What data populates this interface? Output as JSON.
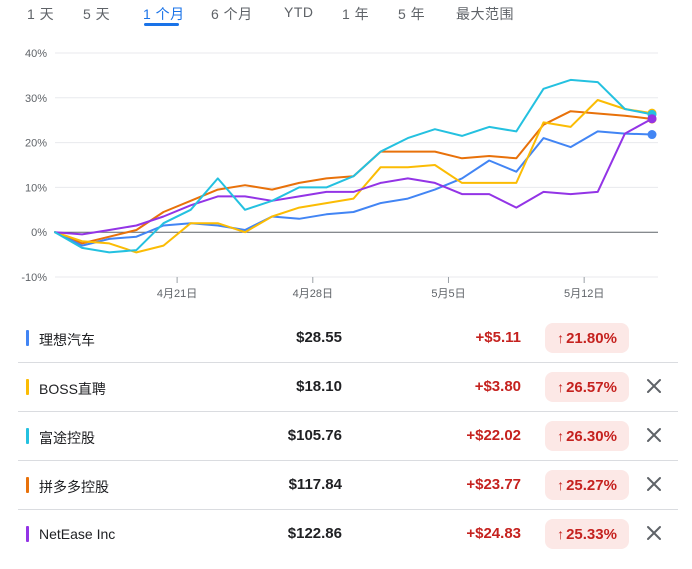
{
  "range_tabs": [
    {
      "label": "1 天",
      "active": false
    },
    {
      "label": "5 天",
      "active": false
    },
    {
      "label": "1 个月",
      "active": true
    },
    {
      "label": "6 个月",
      "active": false
    },
    {
      "label": "YTD",
      "active": false
    },
    {
      "label": "1 年",
      "active": false
    },
    {
      "label": "5 年",
      "active": false
    },
    {
      "label": "最大范围",
      "active": false
    }
  ],
  "chart_data": {
    "type": "line",
    "y_unit": "%",
    "ylim": [
      -10,
      40
    ],
    "y_ticks": [
      40,
      30,
      20,
      10,
      0,
      -10
    ],
    "y_tick_labels": [
      "40%",
      "30%",
      "20%",
      "10%",
      "0%",
      "-10%"
    ],
    "x_tick_labels": [
      "4月21日",
      "4月28日",
      "5月5日",
      "5月12日"
    ],
    "grid": true,
    "series": [
      {
        "name": "理想汽车",
        "color": "#4285f4",
        "values": [
          0,
          -3,
          -1.5,
          -1,
          1.5,
          2,
          1.5,
          0.5,
          3.5,
          3,
          4,
          4.5,
          6.5,
          7.5,
          9.5,
          12,
          16,
          13.5,
          21,
          19,
          22.5,
          22,
          21.8
        ]
      },
      {
        "name": "BOSS直聘",
        "color": "#fbbc04",
        "values": [
          0,
          -2,
          -2.5,
          -4.5,
          -3,
          2,
          2,
          0,
          3.5,
          5.5,
          6.5,
          7.5,
          14.5,
          14.5,
          15,
          11,
          11,
          11,
          24.5,
          23.5,
          29.5,
          27.5,
          26.57
        ]
      },
      {
        "name": "富途控股",
        "color": "#24c1e0",
        "values": [
          0,
          -3.5,
          -4.5,
          -4,
          2,
          5,
          12,
          5,
          7,
          10,
          10,
          12.5,
          18,
          21,
          23,
          21.5,
          23.5,
          22.5,
          32,
          34,
          33.5,
          27.5,
          26.3
        ]
      },
      {
        "name": "拼多多控股",
        "color": "#e8710a",
        "values": [
          0,
          -2.5,
          -1,
          0.5,
          4.5,
          7,
          9.5,
          10.5,
          9.5,
          11,
          12,
          12.5,
          18,
          18,
          18,
          16.5,
          17,
          16.5,
          24,
          27,
          26.5,
          26,
          25.27
        ]
      },
      {
        "name": "NetEase Inc",
        "color": "#9334e6",
        "values": [
          0,
          -0.5,
          0.5,
          1.5,
          3.5,
          6,
          8,
          8,
          7,
          8,
          9,
          9,
          11,
          12,
          11,
          8.5,
          8.5,
          5.5,
          9,
          8.5,
          9,
          22,
          25.33
        ]
      }
    ]
  },
  "stocks": [
    {
      "name": "理想汽车",
      "price": "$28.55",
      "change": "+$5.11",
      "pct": "21.80%",
      "color": "#4285f4",
      "removable": false
    },
    {
      "name": "BOSS直聘",
      "price": "$18.10",
      "change": "+$3.80",
      "pct": "26.57%",
      "color": "#fbbc04",
      "removable": true
    },
    {
      "name": "富途控股",
      "price": "$105.76",
      "change": "+$22.02",
      "pct": "26.30%",
      "color": "#24c1e0",
      "removable": true
    },
    {
      "name": "拼多多控股",
      "price": "$117.84",
      "change": "+$23.77",
      "pct": "25.27%",
      "color": "#e8710a",
      "removable": true
    },
    {
      "name": "NetEase Inc",
      "price": "$122.86",
      "change": "+$24.83",
      "pct": "25.33%",
      "color": "#9334e6",
      "removable": true
    }
  ],
  "icons": {
    "arrow": "arrow-up-icon",
    "remove": "close-icon"
  },
  "arrow_glyph": "↑"
}
